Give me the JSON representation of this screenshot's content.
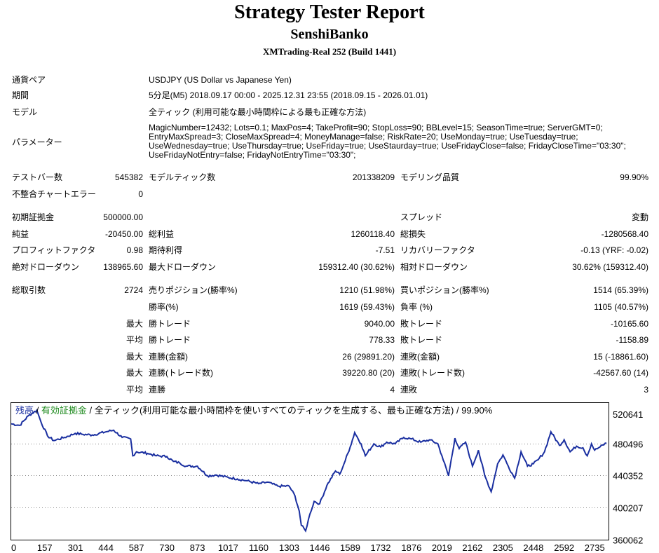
{
  "header": {
    "title": "Strategy Tester Report",
    "name": "SenshiBanko",
    "server": "XMTrading-Real 252 (Build 1441)"
  },
  "info": {
    "pair_label": "通貨ペア",
    "pair_value": "USDJPY (US Dollar vs Japanese Yen)",
    "period_label": "期間",
    "period_value": "5分足(M5) 2018.09.17 00:00 - 2025.12.31 23:55 (2018.09.15 - 2026.01.01)",
    "model_label": "モデル",
    "model_value": "全ティック (利用可能な最小時間枠による最も正確な方法)",
    "params_label": "パラメーター",
    "params_value": "MagicNumber=12432; Lots=0.1; MaxPos=4; TakeProfit=90; StopLoss=90; BBLevel=15; SeasonTime=true; ServerGMT=0; EntryMaxSpread=3; CloseMaxSpread=4; MoneyManage=false; RiskRate=20; UseMonday=true; UseTuesday=true; UseWednesday=true; UseThursday=true; UseFriday=true; UseStaurday=true; UseFridayClose=false; FridayCloseTime=\"03:30\"; UseFridayNotEntry=false; FridayNotEntryTime=\"03:30\";"
  },
  "stats": {
    "bars_label": "テストバー数",
    "bars_value": "545382",
    "ticks_label": "モデルティック数",
    "ticks_value": "201338209",
    "quality_label": "モデリング品質",
    "quality_value": "99.90%",
    "mismatch_label": "不整合チャートエラー",
    "mismatch_value": "0",
    "deposit_label": "初期証拠金",
    "deposit_value": "500000.00",
    "spread_label": "スプレッド",
    "spread_value": "変動",
    "net_label": "純益",
    "net_value": "-20450.00",
    "gross_profit_label": "総利益",
    "gross_profit_value": "1260118.40",
    "gross_loss_label": "総損失",
    "gross_loss_value": "-1280568.40",
    "pf_label": "プロフィットファクタ",
    "pf_value": "0.98",
    "expected_label": "期待利得",
    "expected_value": "-7.51",
    "recovery_label": "リカバリーファクタ",
    "recovery_value": "-0.13 (YRF: -0.02)",
    "abs_dd_label": "絶対ドローダウン",
    "abs_dd_value": "138965.60",
    "max_dd_label": "最大ドローダウン",
    "max_dd_value": "159312.40 (30.62%)",
    "rel_dd_label": "相対ドローダウン",
    "rel_dd_value": "30.62% (159312.40)",
    "trades_label": "総取引数",
    "trades_value": "2724",
    "short_label": "売りポジション(勝率%)",
    "short_value": "1210 (51.98%)",
    "long_label": "買いポジション(勝率%)",
    "long_value": "1514 (65.39%)",
    "winrate_label": "勝率(%)",
    "winrate_value": "1619 (59.43%)",
    "lossrate_label": "負率 (%)",
    "lossrate_value": "1105 (40.57%)",
    "max_label": "最大",
    "avg_label": "平均",
    "max_win_label": "勝トレード",
    "max_win_value": "9040.00",
    "max_loss_label": "敗トレード",
    "max_loss_value": "-10165.60",
    "avg_win_label": "勝トレード",
    "avg_win_value": "778.33",
    "avg_loss_label": "敗トレード",
    "avg_loss_value": "-1158.89",
    "max_cons_win_label": "連勝(金額)",
    "max_cons_win_value": "26 (29891.20)",
    "max_cons_loss_label": "連敗(金額)",
    "max_cons_loss_value": "15 (-18861.60)",
    "max_cons_profit_label": "連勝(トレード数)",
    "max_cons_profit_value": "39220.80 (20)",
    "max_cons_lossamt_label": "連敗(トレード数)",
    "max_cons_lossamt_value": "-42567.60 (14)",
    "avg_cons_win_label": "連勝",
    "avg_cons_win_value": "4",
    "avg_cons_loss_label": "連敗",
    "avg_cons_loss_value": "3"
  },
  "chart": {
    "legend_balance": "残高",
    "legend_sep1": " / ",
    "legend_equity": "有効証拠金",
    "legend_sep2": " / ",
    "legend_model": "全ティック(利用可能な最小時間枠を使いすべてのティックを生成する、最も正確な方法)",
    "legend_sep3": " / ",
    "legend_quality": "99.90%",
    "line_color": "#1a2fa0",
    "equity_color": "#1e8a1e"
  },
  "chart_data": {
    "type": "line",
    "x_ticks": [
      "0",
      "157",
      "301",
      "444",
      "587",
      "730",
      "873",
      "1017",
      "1160",
      "1303",
      "1446",
      "1589",
      "1732",
      "1876",
      "2019",
      "2162",
      "2305",
      "2448",
      "2592",
      "2735"
    ],
    "y_ticks": [
      "520641",
      "480496",
      "440352",
      "400207",
      "360062"
    ],
    "xlim": [
      0,
      2800
    ],
    "ylim": [
      360062,
      531000
    ],
    "series": [
      {
        "x": [
          0,
          40,
          80,
          120,
          140,
          170,
          200,
          250,
          300,
          330,
          380,
          444,
          480,
          520,
          560,
          570,
          587,
          640,
          680,
          730,
          760,
          790,
          820,
          873,
          920,
          960,
          1017,
          1060,
          1100,
          1160,
          1200,
          1250,
          1303,
          1330,
          1350,
          1360,
          1380,
          1400,
          1420,
          1446,
          1480,
          1520,
          1540,
          1560,
          1589,
          1610,
          1640,
          1660,
          1700,
          1732,
          1760,
          1800,
          1840,
          1876,
          1920,
          1960,
          2000,
          2019,
          2050,
          2080,
          2100,
          2130,
          2162,
          2190,
          2220,
          2250,
          2280,
          2305,
          2330,
          2360,
          2390,
          2420,
          2448,
          2470,
          2500,
          2530,
          2570,
          2592,
          2620,
          2650,
          2680,
          2700,
          2720,
          2735,
          2760,
          2790
        ],
        "values": [
          505000,
          503000,
          515000,
          522000,
          507000,
          490000,
          484000,
          488000,
          493000,
          492000,
          491000,
          495000,
          497000,
          488000,
          486000,
          465000,
          470000,
          468000,
          465000,
          464000,
          458000,
          456000,
          452000,
          452000,
          440000,
          441000,
          438000,
          436000,
          434000,
          430000,
          432000,
          427000,
          427000,
          415000,
          396000,
          378000,
          371000,
          392000,
          408000,
          405000,
          428000,
          446000,
          442000,
          455000,
          476000,
          494000,
          480000,
          465000,
          480000,
          476000,
          482000,
          480000,
          488000,
          486000,
          482000,
          485000,
          480000,
          465000,
          440000,
          487000,
          474000,
          482000,
          452000,
          472000,
          440000,
          420000,
          455000,
          466000,
          452000,
          437000,
          470000,
          452000,
          455000,
          460000,
          470000,
          495000,
          478000,
          485000,
          470000,
          477000,
          475000,
          465000,
          480000,
          472000,
          476000,
          481000
        ]
      }
    ]
  }
}
